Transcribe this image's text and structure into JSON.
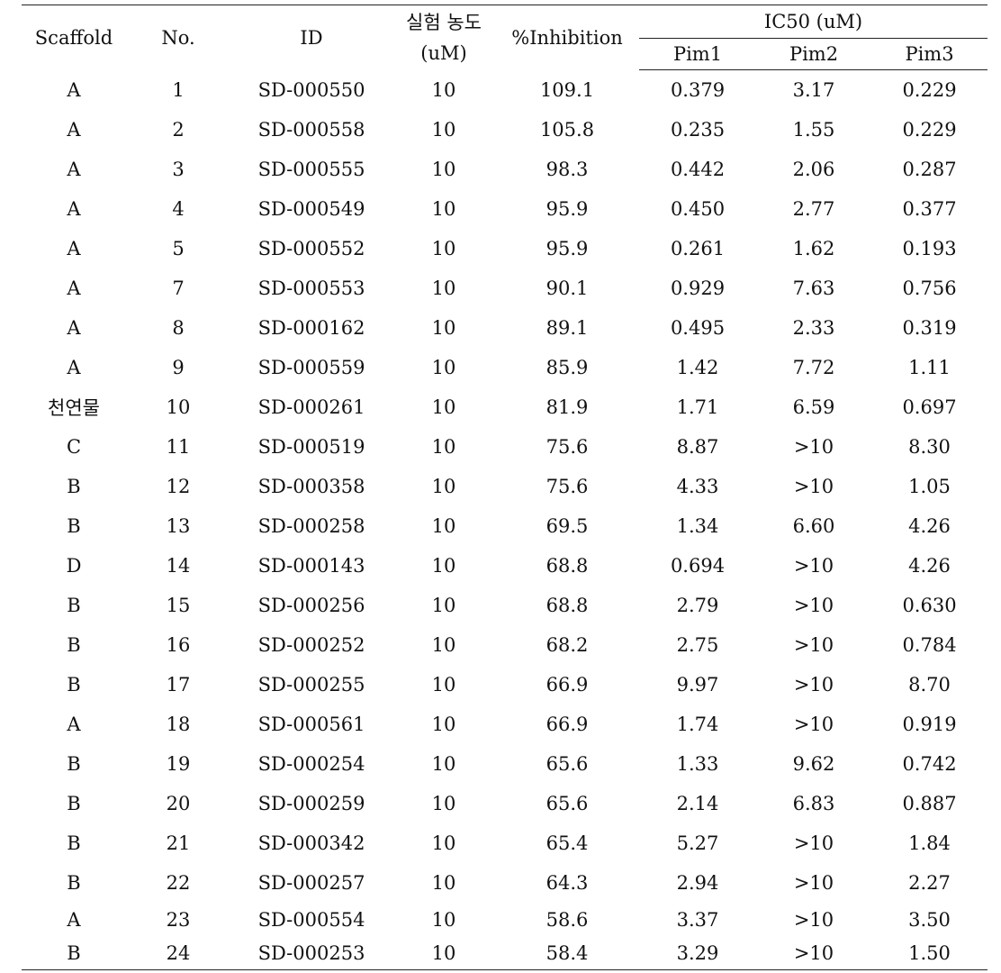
{
  "table": {
    "headers": {
      "scaffold": "Scaffold",
      "no": "No.",
      "id": "ID",
      "concentration_line1": "실험 농도",
      "concentration_line2": "(uM)",
      "inhibition": "%Inhibition",
      "ic50_group": "IC50 (uM)",
      "pim1": "Pim1",
      "pim2": "Pim2",
      "pim3": "Pim3"
    },
    "rows": [
      {
        "scaffold": "A",
        "no": "1",
        "id": "SD-000550",
        "conc": "10",
        "inhibition": "109.1",
        "pim1": "0.379",
        "pim2": "3.17",
        "pim3": "0.229"
      },
      {
        "scaffold": "A",
        "no": "2",
        "id": "SD-000558",
        "conc": "10",
        "inhibition": "105.8",
        "pim1": "0.235",
        "pim2": "1.55",
        "pim3": "0.229"
      },
      {
        "scaffold": "A",
        "no": "3",
        "id": "SD-000555",
        "conc": "10",
        "inhibition": "98.3",
        "pim1": "0.442",
        "pim2": "2.06",
        "pim3": "0.287"
      },
      {
        "scaffold": "A",
        "no": "4",
        "id": "SD-000549",
        "conc": "10",
        "inhibition": "95.9",
        "pim1": "0.450",
        "pim2": "2.77",
        "pim3": "0.377"
      },
      {
        "scaffold": "A",
        "no": "5",
        "id": "SD-000552",
        "conc": "10",
        "inhibition": "95.9",
        "pim1": "0.261",
        "pim2": "1.62",
        "pim3": "0.193"
      },
      {
        "scaffold": "A",
        "no": "7",
        "id": "SD-000553",
        "conc": "10",
        "inhibition": "90.1",
        "pim1": "0.929",
        "pim2": "7.63",
        "pim3": "0.756"
      },
      {
        "scaffold": "A",
        "no": "8",
        "id": "SD-000162",
        "conc": "10",
        "inhibition": "89.1",
        "pim1": "0.495",
        "pim2": "2.33",
        "pim3": "0.319"
      },
      {
        "scaffold": "A",
        "no": "9",
        "id": "SD-000559",
        "conc": "10",
        "inhibition": "85.9",
        "pim1": "1.42",
        "pim2": "7.72",
        "pim3": "1.11"
      },
      {
        "scaffold": "천연물",
        "no": "10",
        "id": "SD-000261",
        "conc": "10",
        "inhibition": "81.9",
        "pim1": "1.71",
        "pim2": "6.59",
        "pim3": "0.697"
      },
      {
        "scaffold": "C",
        "no": "11",
        "id": "SD-000519",
        "conc": "10",
        "inhibition": "75.6",
        "pim1": "8.87",
        "pim2": ">10",
        "pim3": "8.30"
      },
      {
        "scaffold": "B",
        "no": "12",
        "id": "SD-000358",
        "conc": "10",
        "inhibition": "75.6",
        "pim1": "4.33",
        "pim2": ">10",
        "pim3": "1.05"
      },
      {
        "scaffold": "B",
        "no": "13",
        "id": "SD-000258",
        "conc": "10",
        "inhibition": "69.5",
        "pim1": "1.34",
        "pim2": "6.60",
        "pim3": "4.26"
      },
      {
        "scaffold": "D",
        "no": "14",
        "id": "SD-000143",
        "conc": "10",
        "inhibition": "68.8",
        "pim1": "0.694",
        "pim2": ">10",
        "pim3": "4.26"
      },
      {
        "scaffold": "B",
        "no": "15",
        "id": "SD-000256",
        "conc": "10",
        "inhibition": "68.8",
        "pim1": "2.79",
        "pim2": ">10",
        "pim3": "0.630"
      },
      {
        "scaffold": "B",
        "no": "16",
        "id": "SD-000252",
        "conc": "10",
        "inhibition": "68.2",
        "pim1": "2.75",
        "pim2": ">10",
        "pim3": "0.784"
      },
      {
        "scaffold": "B",
        "no": "17",
        "id": "SD-000255",
        "conc": "10",
        "inhibition": "66.9",
        "pim1": "9.97",
        "pim2": ">10",
        "pim3": "8.70"
      },
      {
        "scaffold": "A",
        "no": "18",
        "id": "SD-000561",
        "conc": "10",
        "inhibition": "66.9",
        "pim1": "1.74",
        "pim2": ">10",
        "pim3": "0.919"
      },
      {
        "scaffold": "B",
        "no": "19",
        "id": "SD-000254",
        "conc": "10",
        "inhibition": "65.6",
        "pim1": "1.33",
        "pim2": "9.62",
        "pim3": "0.742"
      },
      {
        "scaffold": "B",
        "no": "20",
        "id": "SD-000259",
        "conc": "10",
        "inhibition": "65.6",
        "pim1": "2.14",
        "pim2": "6.83",
        "pim3": "0.887"
      },
      {
        "scaffold": "B",
        "no": "21",
        "id": "SD-000342",
        "conc": "10",
        "inhibition": "65.4",
        "pim1": "5.27",
        "pim2": ">10",
        "pim3": "1.84"
      },
      {
        "scaffold": "B",
        "no": "22",
        "id": "SD-000257",
        "conc": "10",
        "inhibition": "64.3",
        "pim1": "2.94",
        "pim2": ">10",
        "pim3": "2.27"
      },
      {
        "scaffold": "A",
        "no": "23",
        "id": "SD-000554",
        "conc": "10",
        "inhibition": "58.6",
        "pim1": "3.37",
        "pim2": ">10",
        "pim3": "3.50"
      },
      {
        "scaffold": "B",
        "no": "24",
        "id": "SD-000253",
        "conc": "10",
        "inhibition": "58.4",
        "pim1": "3.29",
        "pim2": ">10",
        "pim3": "1.50"
      }
    ]
  }
}
